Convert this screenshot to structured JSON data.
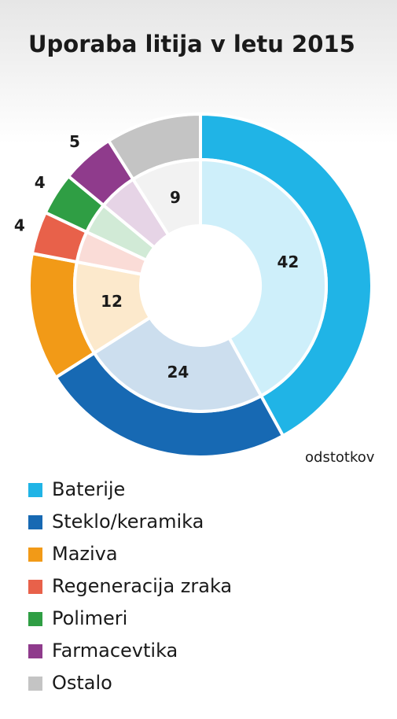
{
  "chart_data": {
    "type": "donut",
    "title": "Uporaba litija v letu 2015",
    "unit_label": "odstotkov",
    "categories": [
      "Baterije",
      "Steklo/keramika",
      "Maziva",
      "Regeneracija zraka",
      "Polimeri",
      "Farmacevtika",
      "Ostalo"
    ],
    "values": [
      42,
      24,
      12,
      4,
      4,
      5,
      9
    ],
    "colors": [
      "#20b4e6",
      "#1769b3",
      "#f29a17",
      "#e8614a",
      "#2f9e44",
      "#8f3b8c",
      "#c4c4c4"
    ],
    "legend": "bottom"
  }
}
